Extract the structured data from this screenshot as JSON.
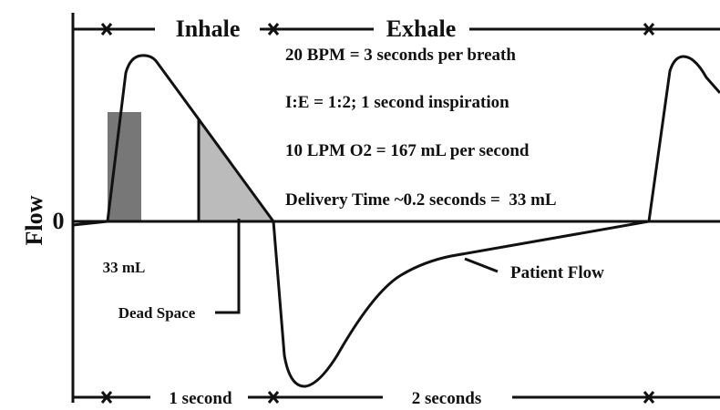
{
  "axis": {
    "label": "Flow",
    "zero": "0"
  },
  "phases": [
    {
      "label": "Inhale"
    },
    {
      "label": "Exhale"
    }
  ],
  "notes": [
    "20 BPM = 3 seconds per breath",
    "I:E = 1:2; 1 second inspiration",
    "10 LPM O2 = 167 mL per second",
    "Delivery Time ~0.2 seconds =  33 mL"
  ],
  "annotations": {
    "delivered": "33 mL",
    "dead_space": "Dead Space",
    "patient_flow": "Patient Flow"
  },
  "durations": [
    {
      "label": "1 second"
    },
    {
      "label": "2 seconds"
    }
  ]
}
